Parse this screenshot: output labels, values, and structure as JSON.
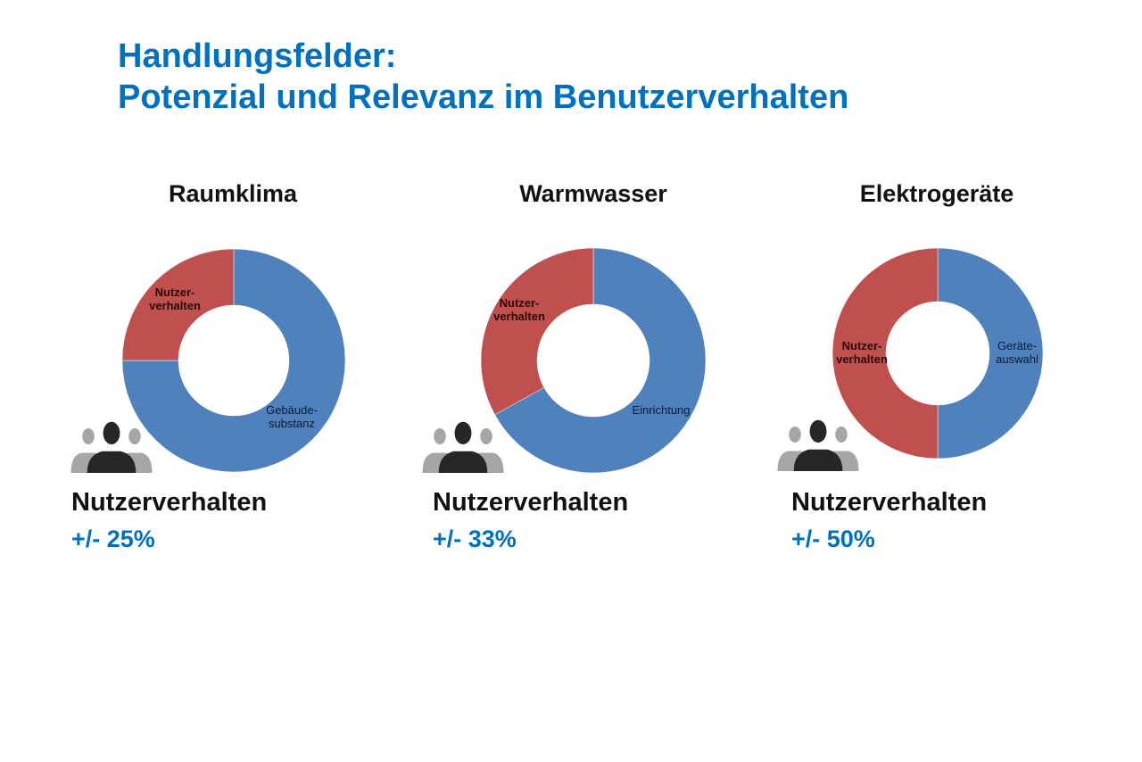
{
  "title": {
    "line1": "Handlungsfelder:",
    "line2": "Potenzial und Relevanz im Benutzerverhalten"
  },
  "colors": {
    "title": "#0070C0",
    "blue": "#4F81BD",
    "red": "#C0504D"
  },
  "icons": [
    "people-group-icon"
  ],
  "panels": [
    {
      "heading": "Raumklima",
      "caption": "Nutzerverhalten",
      "value_label": "+/- 25%"
    },
    {
      "heading": "Warmwasser",
      "caption": "Nutzerverhalten",
      "value_label": "+/- 33%"
    },
    {
      "heading": "Elektrogeräte",
      "caption": "Nutzerverhalten",
      "value_label": "+/- 50%"
    }
  ],
  "chart_data": [
    {
      "type": "pie",
      "donut": true,
      "title": "Raumklima",
      "slices": [
        {
          "label": "Gebäude-\nsubstanz",
          "value": 75,
          "color": "#4F81BD"
        },
        {
          "label": "Nutzer-\nverhalten",
          "value": 25,
          "color": "#C0504D"
        }
      ]
    },
    {
      "type": "pie",
      "donut": true,
      "title": "Warmwasser",
      "slices": [
        {
          "label": "Einrichtung",
          "value": 67,
          "color": "#4F81BD"
        },
        {
          "label": "Nutzer-\nverhalten",
          "value": 33,
          "color": "#C0504D"
        }
      ]
    },
    {
      "type": "pie",
      "donut": true,
      "title": "Elektrogeräte",
      "slices": [
        {
          "label": "Geräte-\nauswahl",
          "value": 50,
          "color": "#4F81BD"
        },
        {
          "label": "Nutzer-\nverhalten",
          "value": 50,
          "color": "#C0504D"
        }
      ]
    }
  ]
}
